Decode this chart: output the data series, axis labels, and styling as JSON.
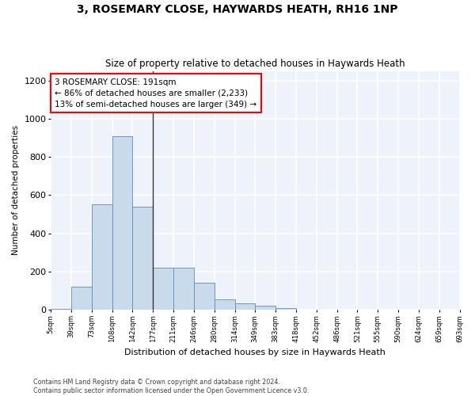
{
  "title": "3, ROSEMARY CLOSE, HAYWARDS HEATH, RH16 1NP",
  "subtitle": "Size of property relative to detached houses in Haywards Heath",
  "xlabel": "Distribution of detached houses by size in Haywards Heath",
  "ylabel": "Number of detached properties",
  "bar_color": "#c9daea",
  "bar_edge_color": "#5b8db8",
  "bar_values": [
    5,
    120,
    550,
    910,
    540,
    220,
    220,
    140,
    55,
    35,
    20,
    10,
    0,
    0,
    0,
    0,
    0,
    0,
    0,
    0
  ],
  "bin_labels": [
    "5sqm",
    "39sqm",
    "73sqm",
    "108sqm",
    "142sqm",
    "177sqm",
    "211sqm",
    "246sqm",
    "280sqm",
    "314sqm",
    "349sqm",
    "383sqm",
    "418sqm",
    "452sqm",
    "486sqm",
    "521sqm",
    "555sqm",
    "590sqm",
    "624sqm",
    "659sqm",
    "693sqm"
  ],
  "ylim": [
    0,
    1250
  ],
  "yticks": [
    0,
    200,
    400,
    600,
    800,
    1000,
    1200
  ],
  "vline_x": 5.0,
  "annotation_line1": "3 ROSEMARY CLOSE: 191sqm",
  "annotation_line2": "← 86% of detached houses are smaller (2,233)",
  "annotation_line3": "13% of semi-detached houses are larger (349) →",
  "background_color": "#eef2fb",
  "grid_color": "#ffffff",
  "footer_line1": "Contains HM Land Registry data © Crown copyright and database right 2024.",
  "footer_line2": "Contains public sector information licensed under the Open Government Licence v3.0."
}
